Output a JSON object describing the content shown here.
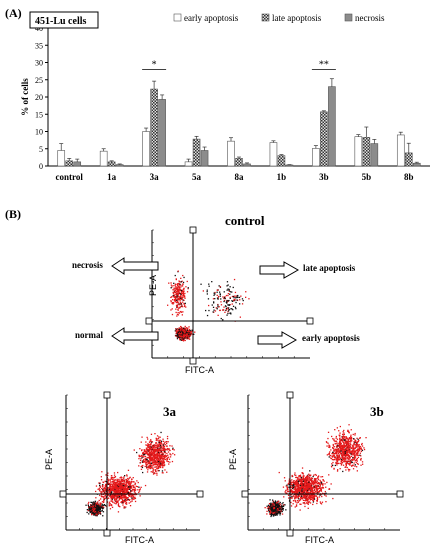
{
  "panel_a_label": "(A)",
  "panel_b_label": "(B)",
  "cell_line_label": "451-Lu cells",
  "chart_data": {
    "type": "bar",
    "categories": [
      "control",
      "1a",
      "3a",
      "5a",
      "8a",
      "1b",
      "3b",
      "5b",
      "8b"
    ],
    "series": [
      {
        "name": "early apoptosis",
        "values": [
          4.5,
          4.3,
          10.0,
          1.2,
          7.2,
          6.8,
          5.1,
          8.5,
          9.0
        ],
        "errors": [
          2.0,
          0.7,
          1.0,
          0.8,
          1.0,
          0.5,
          0.8,
          0.6,
          0.8
        ],
        "color": "#ffffff",
        "pattern": "none"
      },
      {
        "name": "late apoptosis",
        "values": [
          1.5,
          1.2,
          22.3,
          7.8,
          2.2,
          3.0,
          15.7,
          8.3,
          3.8
        ],
        "errors": [
          0.7,
          0.3,
          2.3,
          0.8,
          0.4,
          0.3,
          0.3,
          3.0,
          2.8
        ],
        "color": "#777777",
        "pattern": "checker"
      },
      {
        "name": "necrosis",
        "values": [
          1.2,
          0.4,
          19.3,
          4.5,
          0.6,
          0.3,
          23.0,
          6.5,
          0.8
        ],
        "errors": [
          0.8,
          0.2,
          1.3,
          1.0,
          0.3,
          0.1,
          2.3,
          1.2,
          0.3
        ],
        "color": "#888888",
        "pattern": "solid"
      }
    ],
    "ylabel": "% of cells",
    "ylim": [
      0,
      40
    ],
    "yticks": [
      0,
      5,
      10,
      15,
      20,
      25,
      30,
      35,
      40
    ],
    "grid": false,
    "legend_position": "top",
    "significance": [
      {
        "category_index": 2,
        "label": "*"
      },
      {
        "category_index": 6,
        "label": "**"
      }
    ]
  },
  "flow": {
    "control_title": "control",
    "title_3a": "3a",
    "title_3b": "3b",
    "x_axis": "FITC-A",
    "y_axis": "PE-A",
    "quadrant_labels": {
      "necrosis": "necrosis",
      "late_apoptosis": "late apoptosis",
      "normal": "normal",
      "early_apoptosis": "early apoptosis"
    }
  }
}
